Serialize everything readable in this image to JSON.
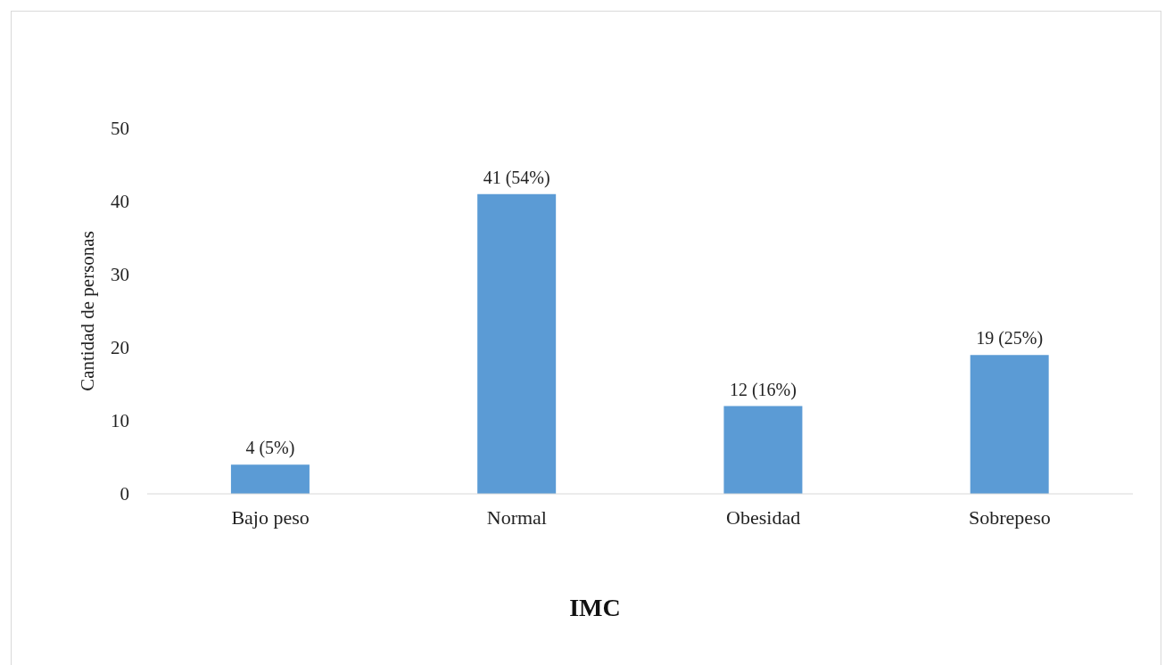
{
  "chart_data": {
    "type": "bar",
    "xlabel": "IMC",
    "ylabel": "Cantidad de personas",
    "categories": [
      "Bajo peso",
      "Normal",
      "Obesidad",
      "Sobrepeso"
    ],
    "values": [
      4,
      41,
      12,
      19
    ],
    "color": "#5b9bd5",
    "value_labels": [
      "4 (5%)",
      "41 (54%)",
      "12 (16%)",
      "19 (25%)"
    ],
    "ylim": [
      0,
      50
    ],
    "yticks": [
      0,
      10,
      20,
      30,
      40,
      50
    ],
    "grid": false
  }
}
